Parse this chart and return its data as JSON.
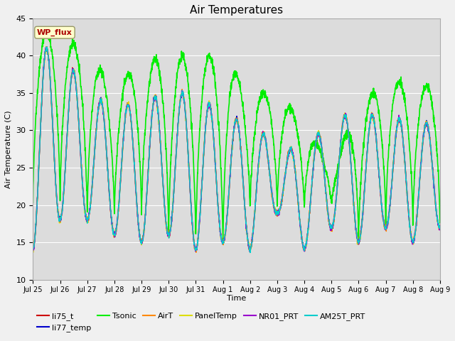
{
  "title": "Air Temperatures",
  "xlabel": "Time",
  "ylabel": "Air Temperature (C)",
  "ylim": [
    10,
    45
  ],
  "yticks": [
    10,
    15,
    20,
    25,
    30,
    35,
    40,
    45
  ],
  "series": {
    "li75_t": {
      "color": "#cc0000",
      "lw": 1.0
    },
    "li77_temp": {
      "color": "#0000cc",
      "lw": 1.0
    },
    "Tsonic": {
      "color": "#00ee00",
      "lw": 1.2
    },
    "AirT": {
      "color": "#ff8800",
      "lw": 1.0
    },
    "PanelTemp": {
      "color": "#dddd00",
      "lw": 1.0
    },
    "NR01_PRT": {
      "color": "#9900cc",
      "lw": 1.0
    },
    "AM25T_PRT": {
      "color": "#00cccc",
      "lw": 1.0
    }
  },
  "n_days": 15,
  "ppd": 144,
  "xtick_labels": [
    "Jul 25",
    "Jul 26",
    "Jul 27",
    "Jul 28",
    "Jul 29",
    "Jul 30",
    "Jul 31",
    "Aug 1",
    "Aug 2",
    "Aug 3",
    "Aug 4",
    "Aug 5",
    "Aug 6",
    "Aug 7",
    "Aug 8",
    "Aug 9"
  ],
  "wp_flux_label": "WP_flux",
  "wp_flux_bg": "#ffffcc",
  "wp_flux_fg": "#aa0000",
  "fig_bg": "#f0f0f0",
  "plot_bg": "#dcdcdc",
  "grid_color": "#ffffff",
  "figsize": [
    6.4,
    4.8
  ],
  "dpi": 100,
  "legend_order": [
    "li75_t",
    "li77_temp",
    "Tsonic",
    "AirT",
    "PanelTemp",
    "NR01_PRT",
    "AM25T_PRT"
  ]
}
